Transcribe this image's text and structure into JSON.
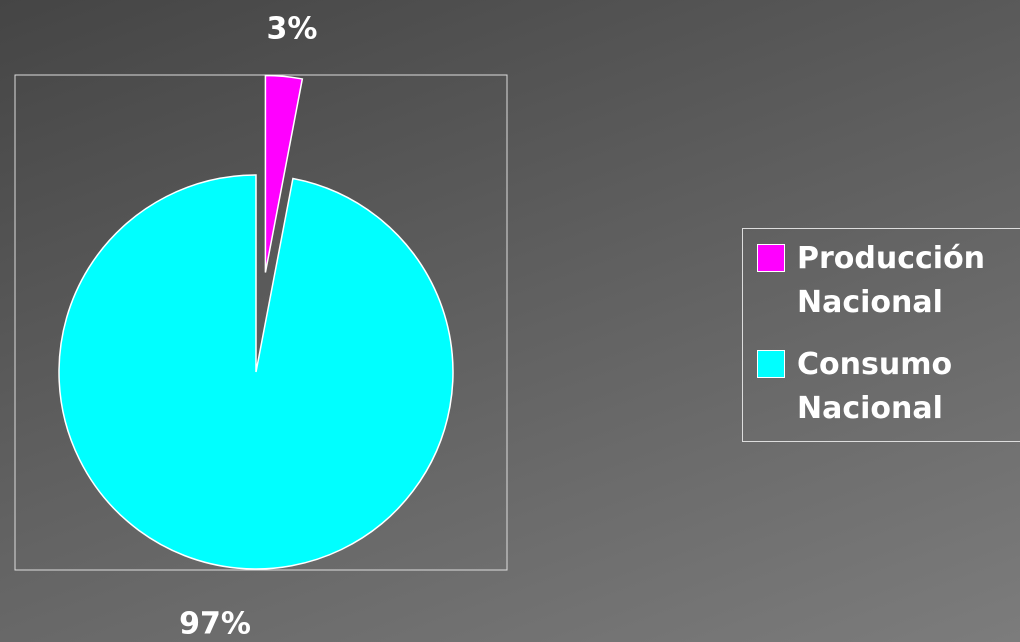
{
  "chart_data": {
    "type": "pie",
    "categories": [
      "Producción Nacional",
      "Consumo Nacional"
    ],
    "values": [
      3,
      97
    ],
    "value_labels": [
      "3%",
      "97%"
    ],
    "colors": [
      "#ff00ff",
      "#00ffff"
    ],
    "legend": "right"
  }
}
